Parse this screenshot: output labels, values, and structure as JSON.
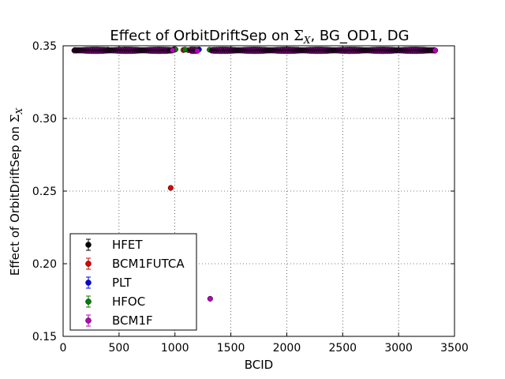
{
  "chart_data": {
    "type": "scatter",
    "title": "Effect of OrbitDriftSep on Σ_X, BG_OD1, DG",
    "title_parts": {
      "prefix": "Effect of OrbitDriftSep on ",
      "sigma": "Σ",
      "sub": "X",
      "suffix": ", BG_OD1, DG"
    },
    "xlabel": "BCID",
    "ylabel": "Effect of OrbitDriftSep on Σ_X",
    "ylabel_parts": {
      "prefix": "Effect of OrbitDriftSep on ",
      "sigma": "Σ",
      "sub": "X"
    },
    "xlim": [
      0,
      3500
    ],
    "ylim": [
      0.15,
      0.35
    ],
    "xticks": [
      0,
      500,
      1000,
      1500,
      2000,
      2500,
      3000,
      3500
    ],
    "yticks": [
      0.15,
      0.2,
      0.25,
      0.3,
      0.35
    ],
    "xtick_labels": [
      "0",
      "500",
      "1000",
      "1500",
      "2000",
      "2500",
      "3000",
      "3500"
    ],
    "ytick_labels": [
      "0.15",
      "0.20",
      "0.25",
      "0.30",
      "0.35"
    ],
    "grid": true,
    "legend_position": "lower-left",
    "series": [
      {
        "name": "HFET",
        "color": "#000000",
        "points": [
          [
            400,
            0.3473
          ],
          [
            640,
            0.3472
          ],
          [
            1000,
            0.3474
          ],
          [
            2100,
            0.3472
          ]
        ]
      },
      {
        "name": "BCM1FUTCA",
        "color": "#dd0000",
        "points": [
          [
            962,
            0.2522
          ],
          [
            1075,
            0.3471
          ],
          [
            1120,
            0.347
          ],
          [
            1180,
            0.3471
          ]
        ]
      },
      {
        "name": "PLT",
        "color": "#0000ee",
        "points": [
          [
            990,
            0.3476
          ],
          [
            1215,
            0.3475
          ],
          [
            550,
            0.3474
          ]
        ]
      },
      {
        "name": "HFOC",
        "color": "#008000",
        "points": [
          [
            350,
            0.3473
          ],
          [
            1005,
            0.3475
          ],
          [
            1090,
            0.3474
          ],
          [
            1310,
            0.3473
          ]
        ]
      },
      {
        "name": "BCM1F",
        "color": "#bb00bb",
        "clusters": [
          [
            100,
            980,
            3
          ],
          [
            1140,
            1200,
            3
          ],
          [
            1330,
            3330,
            3
          ]
        ],
        "outlier": [
          1315,
          0.1759
        ]
      }
    ]
  }
}
